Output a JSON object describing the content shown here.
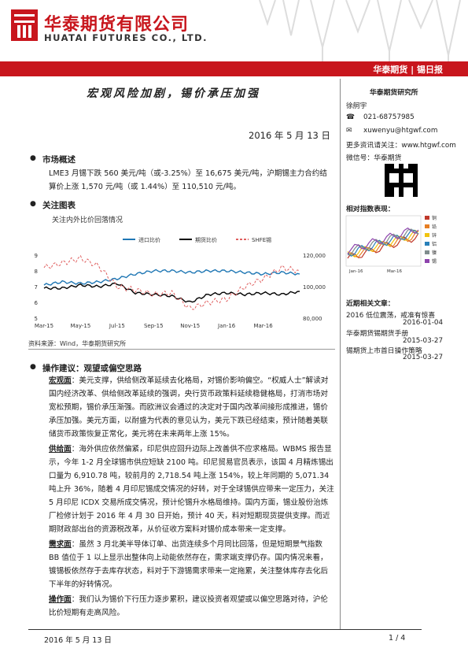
{
  "header": {
    "company_cn": "华泰期货有限公司",
    "company_en": "HUATAI FUTURES CO., LTD.",
    "report_tag": "华泰期货 | 锡日报"
  },
  "report": {
    "title": "宏观风险加剧，锡价承压加强",
    "date": "2016 年 5 月 13 日"
  },
  "sections": {
    "market_overview": {
      "heading": "市场概述",
      "text": "LME3 月锡下跌 560 美元/吨（或-3.25%）至 16,675 美元/吨，沪期锡主力合约结算价上涨 1,570 元/吨（或 1.44%）至 110,510 元/吨。"
    },
    "chart_section": {
      "heading": "关注图表",
      "caption": "关注内外比价回落情况",
      "source": "资料来源：Wind，华泰期货研究所"
    },
    "advice": {
      "heading": "操作建议：观望或偏空思路",
      "paragraphs": [
        {
          "label": "宏观面",
          "text": "：美元支撑，供给侧改革延续去化格局，对锡价影响偏空。“权威人士”解读对国内经济改革、供给侧改革延续的强调，央行货币政策料延续稳健格局，打消市场对宽松预期，锡价承压渐强。而欧洲议会通过的决定对于国内改革间接形成推进，锡价承压加强。美元方面，以耐盛为代表的意见认为，美元下跌已经结束，预计随着美联储货币政策恢复正常化，美元将在未来两年上涨 15%。"
        },
        {
          "label": "供给面",
          "text": "：海外供应依然偏紧，印尼供应回升边际上改善供不应求格局。WBMS 报告显示，今年 1-2 月全球锡市供应短缺 2100 吨。印尼贸易官员表示，该国 4 月精炼锡出口量为 6,910.78 吨，较前月的 2,718.54 吨上涨 154%，较上年同期的 5,071.34 吨上升 36%，随着 4 月印尼锡成交情况的好转，对于全球锡供应带来一定压力，关注 5 月印尼 ICDX 交易所成交情况，预计伦锡升水格局维持。国内方面，锡业股份治炼厂检修计划于 2016 年 4 月 30 日开始，预计 40 天，料对短期现货提供支撑。而近期财政部出台的资源税改革，从价征收方案料对锡价成本带来一定支撑。"
        },
        {
          "label": "需求面",
          "text": "：虽然 3 月北美半导体订单、出货连续多个月同比回落，但是短期景气指数 BB 值位于 1 以上显示出整体向上动能依然存在，需求端支撑仍存。国内情况来看，镀锡板依然存于去库存状态，料对于下游锡需求带来一定拖累，关注整体库存去化后下半年的好转情况。"
        },
        {
          "label": "操作面",
          "text": "：我们认为锡价下行压力逐步累积，建议投资者观望或以偏空思路对待，沪伦比价短期有走高风险。"
        }
      ]
    }
  },
  "sidebar": {
    "institute": "华泰期货研究所",
    "analyst": "徐舸宇",
    "phone": "021-68757985",
    "email": "xuwenyu@htgwf.com",
    "more_info": "更多资讯请关注：www.htgwf.com",
    "wechat": "微信号：华泰期货",
    "index_title": "相对指数表现：",
    "index_legend": [
      "铜",
      "铅",
      "锌",
      "铝",
      "镍",
      "锡"
    ],
    "index_colors": [
      "#c0392b",
      "#e67e22",
      "#f1c40f",
      "#2980b9",
      "#7f8c8d",
      "#8e44ad"
    ],
    "index_x": [
      "Jan-16",
      "Mar-16"
    ],
    "related_title": "近期相关文章：",
    "articles": [
      {
        "title": "2016 低位震荡，戒准有惊喜",
        "date": "2016-01-04"
      },
      {
        "title": "华泰期货锡期货手册",
        "date": "2015-03-27"
      },
      {
        "title": "锡期货上市首日操作策略",
        "date": "2015-03-27"
      }
    ]
  },
  "chart_data": {
    "type": "line",
    "series": [
      {
        "name": "进口比价",
        "axis": "left",
        "color": "#1f77b4",
        "x": [
          "Mar-15",
          "Apr-15",
          "May-15",
          "Jun-15",
          "Jul-15",
          "Aug-15",
          "Sep-15",
          "Oct-15",
          "Nov-15",
          "Dec-15",
          "Jan-16",
          "Feb-16",
          "Mar-16",
          "Apr-16",
          "May-16"
        ],
        "values": [
          7.1,
          7.3,
          7.2,
          7.3,
          7.5,
          7.8,
          8.0,
          8.0,
          7.9,
          8.0,
          8.0,
          7.9,
          7.8,
          7.9,
          7.8
        ]
      },
      {
        "name": "期货比价",
        "axis": "left",
        "color": "#000000",
        "x": [
          "Mar-15",
          "Apr-15",
          "May-15",
          "Jun-15",
          "Jul-15",
          "Aug-15",
          "Sep-15",
          "Oct-15",
          "Nov-15",
          "Dec-15",
          "Jan-16",
          "Feb-16",
          "Mar-16",
          "Apr-16",
          "May-16"
        ],
        "values": [
          6.9,
          6.9,
          7.1,
          7.0,
          7.2,
          6.6,
          6.5,
          6.4,
          6.0,
          6.5,
          6.6,
          6.5,
          6.6,
          6.5,
          6.7
        ]
      },
      {
        "name": "SHFE锡",
        "axis": "right",
        "color": "#e06060",
        "x": [
          "Mar-15",
          "Apr-15",
          "May-15",
          "Jun-15",
          "Jul-15",
          "Aug-15",
          "Sep-15",
          "Oct-15",
          "Nov-15",
          "Dec-15",
          "Jan-16",
          "Feb-16",
          "Mar-16",
          "Apr-16",
          "May-16"
        ],
        "values": [
          112000,
          115000,
          118000,
          113000,
          100000,
          98000,
          95000,
          96000,
          86000,
          90000,
          92000,
          100000,
          105000,
          112000,
          110000
        ]
      }
    ],
    "x_ticks": [
      "Mar-15",
      "May-15",
      "Jul-15",
      "Sep-15",
      "Nov-15",
      "Jan-16",
      "Mar-16"
    ],
    "ylim_left": [
      5,
      9
    ],
    "yticks_left": [
      "9",
      "8",
      "7",
      "6",
      "5"
    ],
    "ylim_right": [
      80000,
      120000
    ],
    "yticks_right": [
      "120,000",
      "100,000",
      "80,000"
    ],
    "legend_position": "top"
  },
  "footer": {
    "date": "2016 年 5 月 13 日",
    "page": "1 / 4"
  }
}
